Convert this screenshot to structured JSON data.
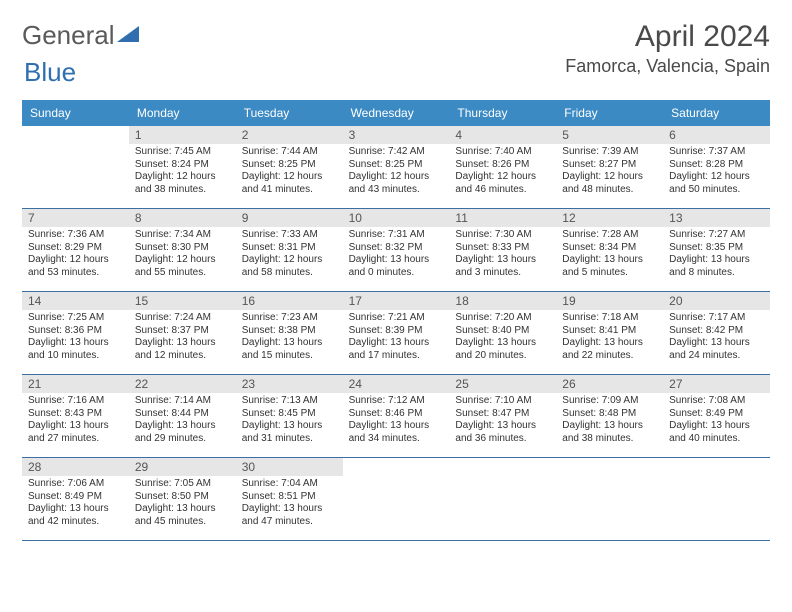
{
  "brand": {
    "word1": "General",
    "word2": "Blue",
    "color1": "#5a5a5a",
    "color2": "#2f6fb0",
    "triangle_color": "#2f6fb0"
  },
  "title": {
    "month": "April 2024",
    "location": "Famorca, Valencia, Spain"
  },
  "colors": {
    "header_bg": "#3b8ac4",
    "header_text": "#ffffff",
    "num_bg": "#e6e6e6",
    "border": "#3b6fa0",
    "text": "#333333"
  },
  "daynames": [
    "Sunday",
    "Monday",
    "Tuesday",
    "Wednesday",
    "Thursday",
    "Friday",
    "Saturday"
  ],
  "weeks": [
    [
      {
        "num": "",
        "sunrise": "",
        "sunset": "",
        "daylight": ""
      },
      {
        "num": "1",
        "sunrise": "Sunrise: 7:45 AM",
        "sunset": "Sunset: 8:24 PM",
        "daylight": "Daylight: 12 hours\nand 38 minutes."
      },
      {
        "num": "2",
        "sunrise": "Sunrise: 7:44 AM",
        "sunset": "Sunset: 8:25 PM",
        "daylight": "Daylight: 12 hours\nand 41 minutes."
      },
      {
        "num": "3",
        "sunrise": "Sunrise: 7:42 AM",
        "sunset": "Sunset: 8:25 PM",
        "daylight": "Daylight: 12 hours\nand 43 minutes."
      },
      {
        "num": "4",
        "sunrise": "Sunrise: 7:40 AM",
        "sunset": "Sunset: 8:26 PM",
        "daylight": "Daylight: 12 hours\nand 46 minutes."
      },
      {
        "num": "5",
        "sunrise": "Sunrise: 7:39 AM",
        "sunset": "Sunset: 8:27 PM",
        "daylight": "Daylight: 12 hours\nand 48 minutes."
      },
      {
        "num": "6",
        "sunrise": "Sunrise: 7:37 AM",
        "sunset": "Sunset: 8:28 PM",
        "daylight": "Daylight: 12 hours\nand 50 minutes."
      }
    ],
    [
      {
        "num": "7",
        "sunrise": "Sunrise: 7:36 AM",
        "sunset": "Sunset: 8:29 PM",
        "daylight": "Daylight: 12 hours\nand 53 minutes."
      },
      {
        "num": "8",
        "sunrise": "Sunrise: 7:34 AM",
        "sunset": "Sunset: 8:30 PM",
        "daylight": "Daylight: 12 hours\nand 55 minutes."
      },
      {
        "num": "9",
        "sunrise": "Sunrise: 7:33 AM",
        "sunset": "Sunset: 8:31 PM",
        "daylight": "Daylight: 12 hours\nand 58 minutes."
      },
      {
        "num": "10",
        "sunrise": "Sunrise: 7:31 AM",
        "sunset": "Sunset: 8:32 PM",
        "daylight": "Daylight: 13 hours\nand 0 minutes."
      },
      {
        "num": "11",
        "sunrise": "Sunrise: 7:30 AM",
        "sunset": "Sunset: 8:33 PM",
        "daylight": "Daylight: 13 hours\nand 3 minutes."
      },
      {
        "num": "12",
        "sunrise": "Sunrise: 7:28 AM",
        "sunset": "Sunset: 8:34 PM",
        "daylight": "Daylight: 13 hours\nand 5 minutes."
      },
      {
        "num": "13",
        "sunrise": "Sunrise: 7:27 AM",
        "sunset": "Sunset: 8:35 PM",
        "daylight": "Daylight: 13 hours\nand 8 minutes."
      }
    ],
    [
      {
        "num": "14",
        "sunrise": "Sunrise: 7:25 AM",
        "sunset": "Sunset: 8:36 PM",
        "daylight": "Daylight: 13 hours\nand 10 minutes."
      },
      {
        "num": "15",
        "sunrise": "Sunrise: 7:24 AM",
        "sunset": "Sunset: 8:37 PM",
        "daylight": "Daylight: 13 hours\nand 12 minutes."
      },
      {
        "num": "16",
        "sunrise": "Sunrise: 7:23 AM",
        "sunset": "Sunset: 8:38 PM",
        "daylight": "Daylight: 13 hours\nand 15 minutes."
      },
      {
        "num": "17",
        "sunrise": "Sunrise: 7:21 AM",
        "sunset": "Sunset: 8:39 PM",
        "daylight": "Daylight: 13 hours\nand 17 minutes."
      },
      {
        "num": "18",
        "sunrise": "Sunrise: 7:20 AM",
        "sunset": "Sunset: 8:40 PM",
        "daylight": "Daylight: 13 hours\nand 20 minutes."
      },
      {
        "num": "19",
        "sunrise": "Sunrise: 7:18 AM",
        "sunset": "Sunset: 8:41 PM",
        "daylight": "Daylight: 13 hours\nand 22 minutes."
      },
      {
        "num": "20",
        "sunrise": "Sunrise: 7:17 AM",
        "sunset": "Sunset: 8:42 PM",
        "daylight": "Daylight: 13 hours\nand 24 minutes."
      }
    ],
    [
      {
        "num": "21",
        "sunrise": "Sunrise: 7:16 AM",
        "sunset": "Sunset: 8:43 PM",
        "daylight": "Daylight: 13 hours\nand 27 minutes."
      },
      {
        "num": "22",
        "sunrise": "Sunrise: 7:14 AM",
        "sunset": "Sunset: 8:44 PM",
        "daylight": "Daylight: 13 hours\nand 29 minutes."
      },
      {
        "num": "23",
        "sunrise": "Sunrise: 7:13 AM",
        "sunset": "Sunset: 8:45 PM",
        "daylight": "Daylight: 13 hours\nand 31 minutes."
      },
      {
        "num": "24",
        "sunrise": "Sunrise: 7:12 AM",
        "sunset": "Sunset: 8:46 PM",
        "daylight": "Daylight: 13 hours\nand 34 minutes."
      },
      {
        "num": "25",
        "sunrise": "Sunrise: 7:10 AM",
        "sunset": "Sunset: 8:47 PM",
        "daylight": "Daylight: 13 hours\nand 36 minutes."
      },
      {
        "num": "26",
        "sunrise": "Sunrise: 7:09 AM",
        "sunset": "Sunset: 8:48 PM",
        "daylight": "Daylight: 13 hours\nand 38 minutes."
      },
      {
        "num": "27",
        "sunrise": "Sunrise: 7:08 AM",
        "sunset": "Sunset: 8:49 PM",
        "daylight": "Daylight: 13 hours\nand 40 minutes."
      }
    ],
    [
      {
        "num": "28",
        "sunrise": "Sunrise: 7:06 AM",
        "sunset": "Sunset: 8:49 PM",
        "daylight": "Daylight: 13 hours\nand 42 minutes."
      },
      {
        "num": "29",
        "sunrise": "Sunrise: 7:05 AM",
        "sunset": "Sunset: 8:50 PM",
        "daylight": "Daylight: 13 hours\nand 45 minutes."
      },
      {
        "num": "30",
        "sunrise": "Sunrise: 7:04 AM",
        "sunset": "Sunset: 8:51 PM",
        "daylight": "Daylight: 13 hours\nand 47 minutes."
      },
      {
        "num": "",
        "sunrise": "",
        "sunset": "",
        "daylight": ""
      },
      {
        "num": "",
        "sunrise": "",
        "sunset": "",
        "daylight": ""
      },
      {
        "num": "",
        "sunrise": "",
        "sunset": "",
        "daylight": ""
      },
      {
        "num": "",
        "sunrise": "",
        "sunset": "",
        "daylight": ""
      }
    ]
  ]
}
